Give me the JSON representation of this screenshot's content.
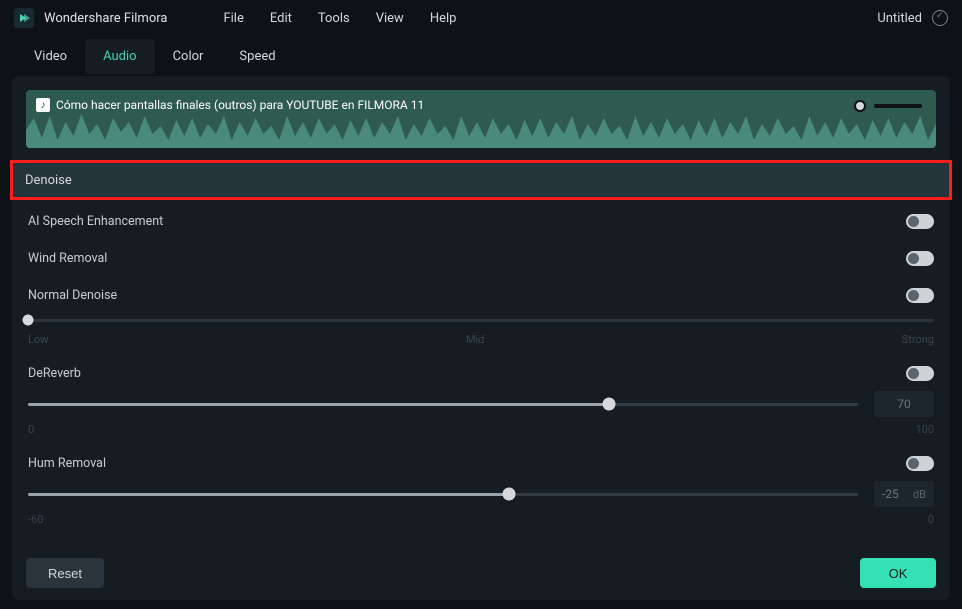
{
  "colors": {
    "accent": "#35e0b4",
    "bg": "#0d1216",
    "panel": "#151c22",
    "highlight_border": "#ff1e1e",
    "section_bg": "#25333b",
    "waveform_bg": "#2f5a50"
  },
  "titlebar": {
    "app_name": "Wondershare Filmora",
    "menus": [
      "File",
      "Edit",
      "Tools",
      "View",
      "Help"
    ],
    "document_title": "Untitled"
  },
  "tabs": {
    "items": [
      "Video",
      "Audio",
      "Color",
      "Speed"
    ],
    "active_index": 1
  },
  "waveform": {
    "clip_title": "Cómo hacer pantallas finales (outros) para YOUTUBE en FILMORA 11"
  },
  "section": {
    "title": "Denoise"
  },
  "controls": {
    "ai_speech": {
      "label": "AI Speech Enhancement",
      "on": false
    },
    "wind_removal": {
      "label": "Wind Removal",
      "on": false
    },
    "normal_denoise": {
      "label": "Normal Denoise",
      "on": false,
      "slider": {
        "pos_pct": 0,
        "ticks": [
          "Low",
          "Mid",
          "Strong"
        ]
      }
    },
    "dereverb": {
      "label": "DeReverb",
      "on": false,
      "slider": {
        "pos_pct": 70,
        "min_label": "0",
        "max_label": "100"
      },
      "value": "70"
    },
    "hum_removal": {
      "label": "Hum Removal",
      "on": false,
      "slider": {
        "pos_pct": 58,
        "min_label": "-60",
        "max_label": "0"
      },
      "value": "-25",
      "unit": "dB"
    }
  },
  "footer": {
    "reset_label": "Reset",
    "ok_label": "OK"
  }
}
